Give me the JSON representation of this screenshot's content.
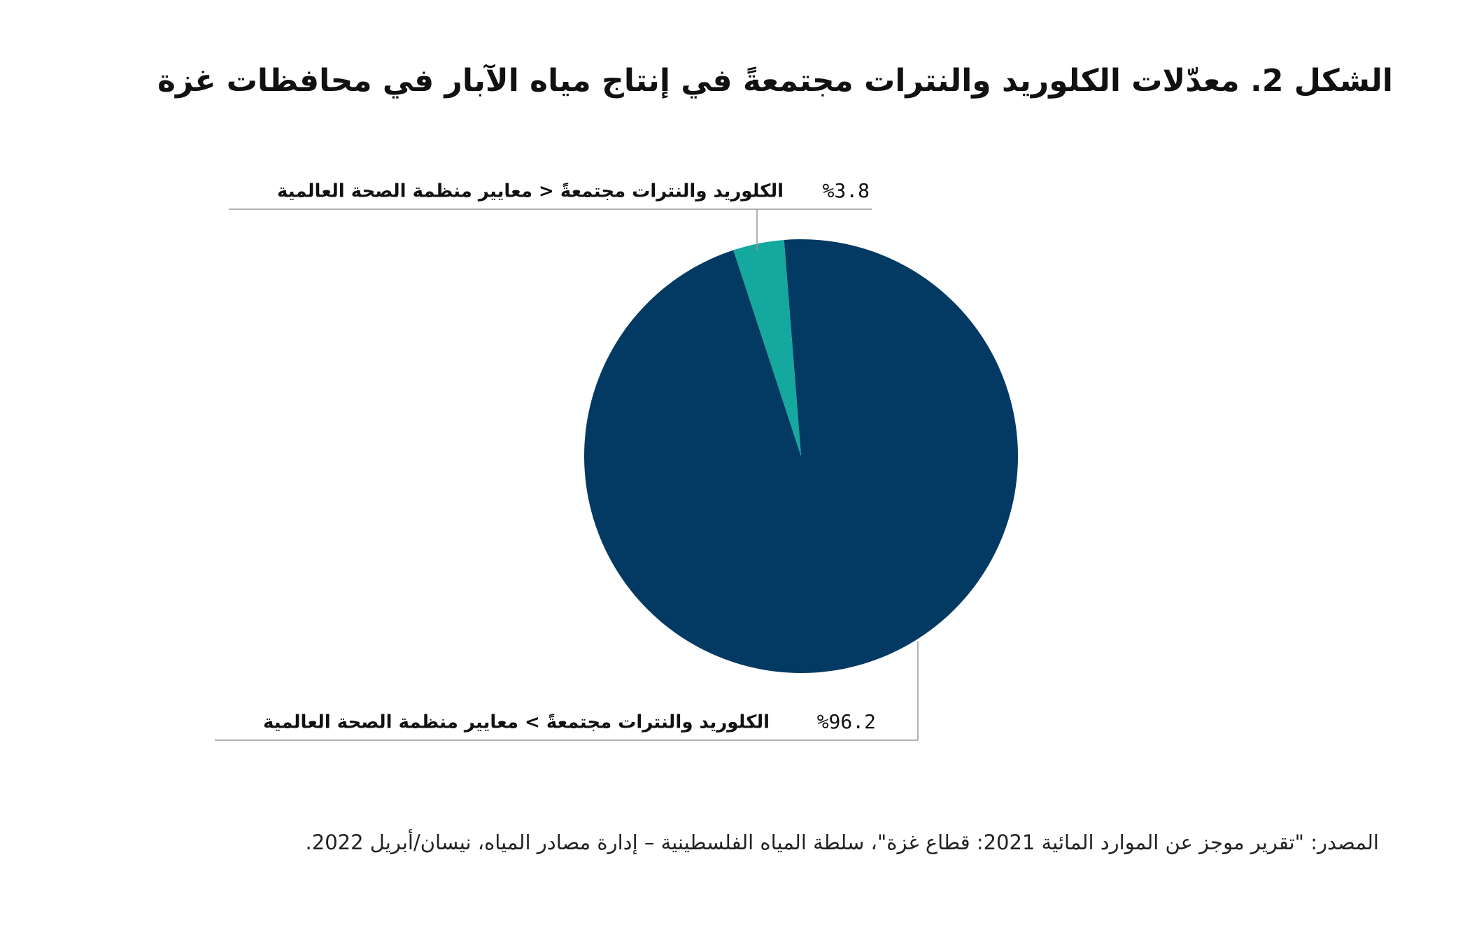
{
  "chart_data": {
    "type": "pie",
    "title": "الشكل 2. معدّلات الكلوريد والنترات مجتمعةً في إنتاج مياه الآبار في محافظات غزة",
    "categories": [
      "الكلوريد والنترات مجتمعةً > معايير منظمة الصحة العالمية",
      "الكلوريد والنترات مجتمعةً < معايير منظمة الصحة العالمية"
    ],
    "values": [
      96.2,
      3.8
    ],
    "value_labels": [
      "%96.2",
      "%3.8"
    ],
    "colors": [
      "#033a63",
      "#14a89e"
    ],
    "source": "المصدر: \"تقرير موجز عن الموارد المائية 2021: قطاع غزة\"، سلطة المياه الفلسطينية – إدارة مصادر المياه، نيسان/أبريل 2022."
  }
}
